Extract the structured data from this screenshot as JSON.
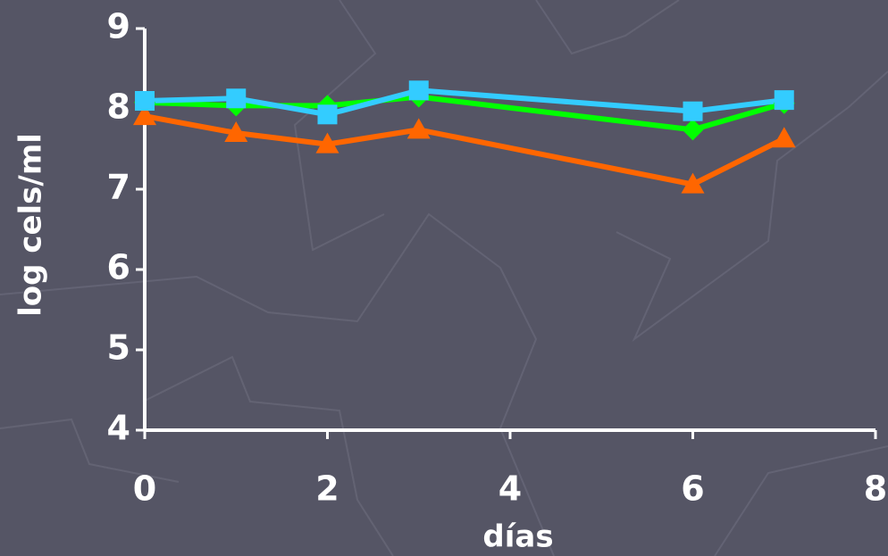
{
  "chart_data": {
    "type": "line",
    "x_label": "días",
    "y_label": "log cels/ml",
    "x": [
      0,
      1,
      2,
      3,
      6,
      7
    ],
    "series": [
      {
        "color": "#00ff00",
        "marker": "diamond",
        "values": [
          8.08,
          8.04,
          8.04,
          8.15,
          7.74,
          8.07
        ]
      },
      {
        "color": "#ff6600",
        "marker": "triangle",
        "values": [
          7.91,
          7.7,
          7.56,
          7.74,
          7.06,
          7.63
        ]
      },
      {
        "color": "#33ccff",
        "marker": "square",
        "values": [
          8.1,
          8.13,
          7.93,
          8.23,
          7.97,
          8.11
        ]
      }
    ],
    "xlim": [
      0,
      8
    ],
    "xticks": [
      0,
      2,
      4,
      6,
      8
    ],
    "ylim": [
      4,
      9
    ],
    "yticks": [
      4,
      5,
      6,
      7,
      8,
      9
    ],
    "grid": false
  }
}
